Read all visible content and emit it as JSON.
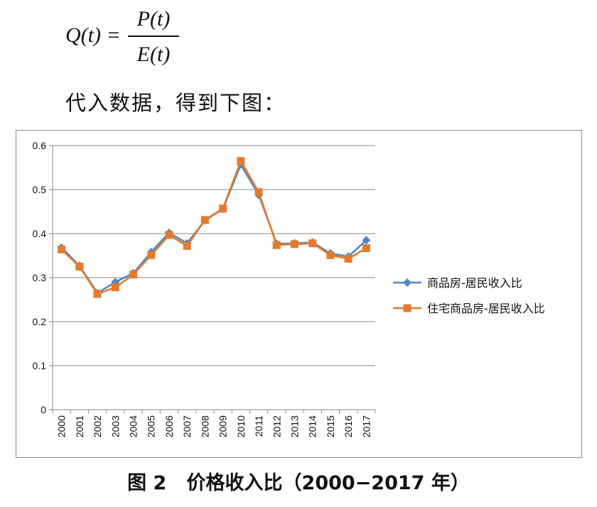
{
  "formula": {
    "lhs": "Q(t) =",
    "numerator": "P(t)",
    "denominator": "E(t)"
  },
  "intro_text": "代入数据，得到下图：",
  "caption": {
    "figure_label": "图 2",
    "title": "价格收入比（2000−2017 年）"
  },
  "chart_data": {
    "type": "line",
    "categories": [
      "2000",
      "2001",
      "2002",
      "2003",
      "2004",
      "2005",
      "2006",
      "2007",
      "2008",
      "2009",
      "2010",
      "2011",
      "2012",
      "2013",
      "2014",
      "2015",
      "2016",
      "2017"
    ],
    "ylim": [
      0,
      0.6
    ],
    "yticks": [
      "0",
      "0.1",
      "0.2",
      "0.3",
      "0.4",
      "0.5",
      "0.6"
    ],
    "ytick_values": [
      0,
      0.1,
      0.2,
      0.3,
      0.4,
      0.5,
      0.6
    ],
    "grid": "horizontal",
    "legend_position": "right",
    "series": [
      {
        "name": "商品房-居民收入比",
        "marker": "diamond",
        "color": "#4f87c7",
        "values": [
          0.368,
          0.327,
          0.265,
          0.29,
          0.31,
          0.358,
          0.402,
          0.378,
          0.43,
          0.456,
          0.557,
          0.488,
          0.377,
          0.378,
          0.38,
          0.355,
          0.348,
          0.385
        ]
      },
      {
        "name": "住宅商品房-居民收入比",
        "marker": "square",
        "color": "#e57a2e",
        "values": [
          0.364,
          0.325,
          0.263,
          0.278,
          0.307,
          0.351,
          0.397,
          0.372,
          0.431,
          0.457,
          0.565,
          0.494,
          0.374,
          0.376,
          0.378,
          0.351,
          0.343,
          0.367
        ]
      }
    ]
  }
}
